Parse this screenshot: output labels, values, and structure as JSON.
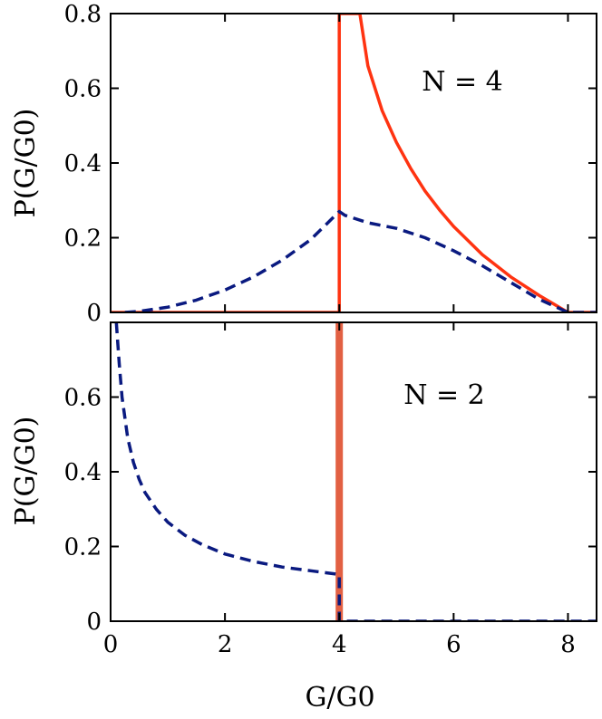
{
  "chart_data": [
    {
      "type": "line",
      "panel": "top",
      "annotation": "N = 4",
      "xlim": [
        0,
        8.5
      ],
      "ylim": [
        0,
        0.8
      ],
      "yticks": [
        0,
        0.2,
        0.4,
        0.6,
        0.8
      ],
      "ytick_labels": [
        "0",
        "0.2",
        "0.4",
        "0.6",
        "0.8"
      ],
      "xticks": [
        0,
        2,
        4,
        6,
        8
      ],
      "ylabel": "P(G/G0)",
      "xlabel": "",
      "grid": false,
      "series": [
        {
          "color": "#ff3311",
          "style": "solid",
          "x": [
            0,
            3.995,
            4.0,
            4.0,
            4.36,
            4.5,
            4.75,
            5.0,
            5.25,
            5.5,
            5.75,
            6.0,
            6.5,
            7.0,
            7.5,
            8.0,
            8.5
          ],
          "y": [
            0,
            0,
            0,
            0.8,
            0.8,
            0.66,
            0.54,
            0.455,
            0.385,
            0.325,
            0.275,
            0.23,
            0.155,
            0.095,
            0.045,
            0.0,
            0.0
          ]
        },
        {
          "color": "#0a1a80",
          "style": "dashed",
          "x": [
            0.25,
            0.5,
            1.0,
            1.5,
            2.0,
            2.5,
            3.0,
            3.5,
            4.0,
            4.1,
            4.5,
            5.0,
            5.5,
            6.0,
            6.5,
            7.0,
            7.5,
            8.0,
            8.5
          ],
          "y": [
            0,
            0.003,
            0.014,
            0.033,
            0.06,
            0.095,
            0.14,
            0.195,
            0.27,
            0.26,
            0.24,
            0.225,
            0.2,
            0.165,
            0.125,
            0.08,
            0.035,
            0.0,
            0.0
          ]
        }
      ]
    },
    {
      "type": "line",
      "panel": "bottom",
      "annotation": "N = 2",
      "xlim": [
        0,
        8.5
      ],
      "ylim": [
        0,
        0.8
      ],
      "yticks": [
        0,
        0.2,
        0.4,
        0.6
      ],
      "ytick_labels": [
        "0",
        "0.2",
        "0.4",
        "0.6"
      ],
      "xticks": [
        0,
        2,
        4,
        6,
        8
      ],
      "xtick_labels": [
        "0",
        "2",
        "4",
        "6",
        "8"
      ],
      "ylabel": "P(G/G0)",
      "xlabel": "G/G0",
      "grid": false,
      "series": [
        {
          "color": "#dd4422",
          "style": "solid-thick",
          "x": [
            4.0,
            4.0
          ],
          "y": [
            0,
            0.8
          ]
        },
        {
          "color": "#0a1a80",
          "style": "dashed",
          "x": [
            0.1,
            0.15,
            0.2,
            0.3,
            0.4,
            0.5,
            0.6,
            0.8,
            1.0,
            1.3,
            1.6,
            2.0,
            2.5,
            3.0,
            3.5,
            4.0,
            4.0,
            4.1,
            5.0,
            6.0,
            7.0,
            8.0,
            8.5
          ],
          "y": [
            0.8,
            0.69,
            0.6,
            0.49,
            0.425,
            0.38,
            0.345,
            0.3,
            0.265,
            0.23,
            0.205,
            0.18,
            0.16,
            0.145,
            0.135,
            0.125,
            0.0,
            0.0,
            0.0,
            0.0,
            0.0,
            0.0,
            0.0
          ]
        }
      ]
    }
  ]
}
